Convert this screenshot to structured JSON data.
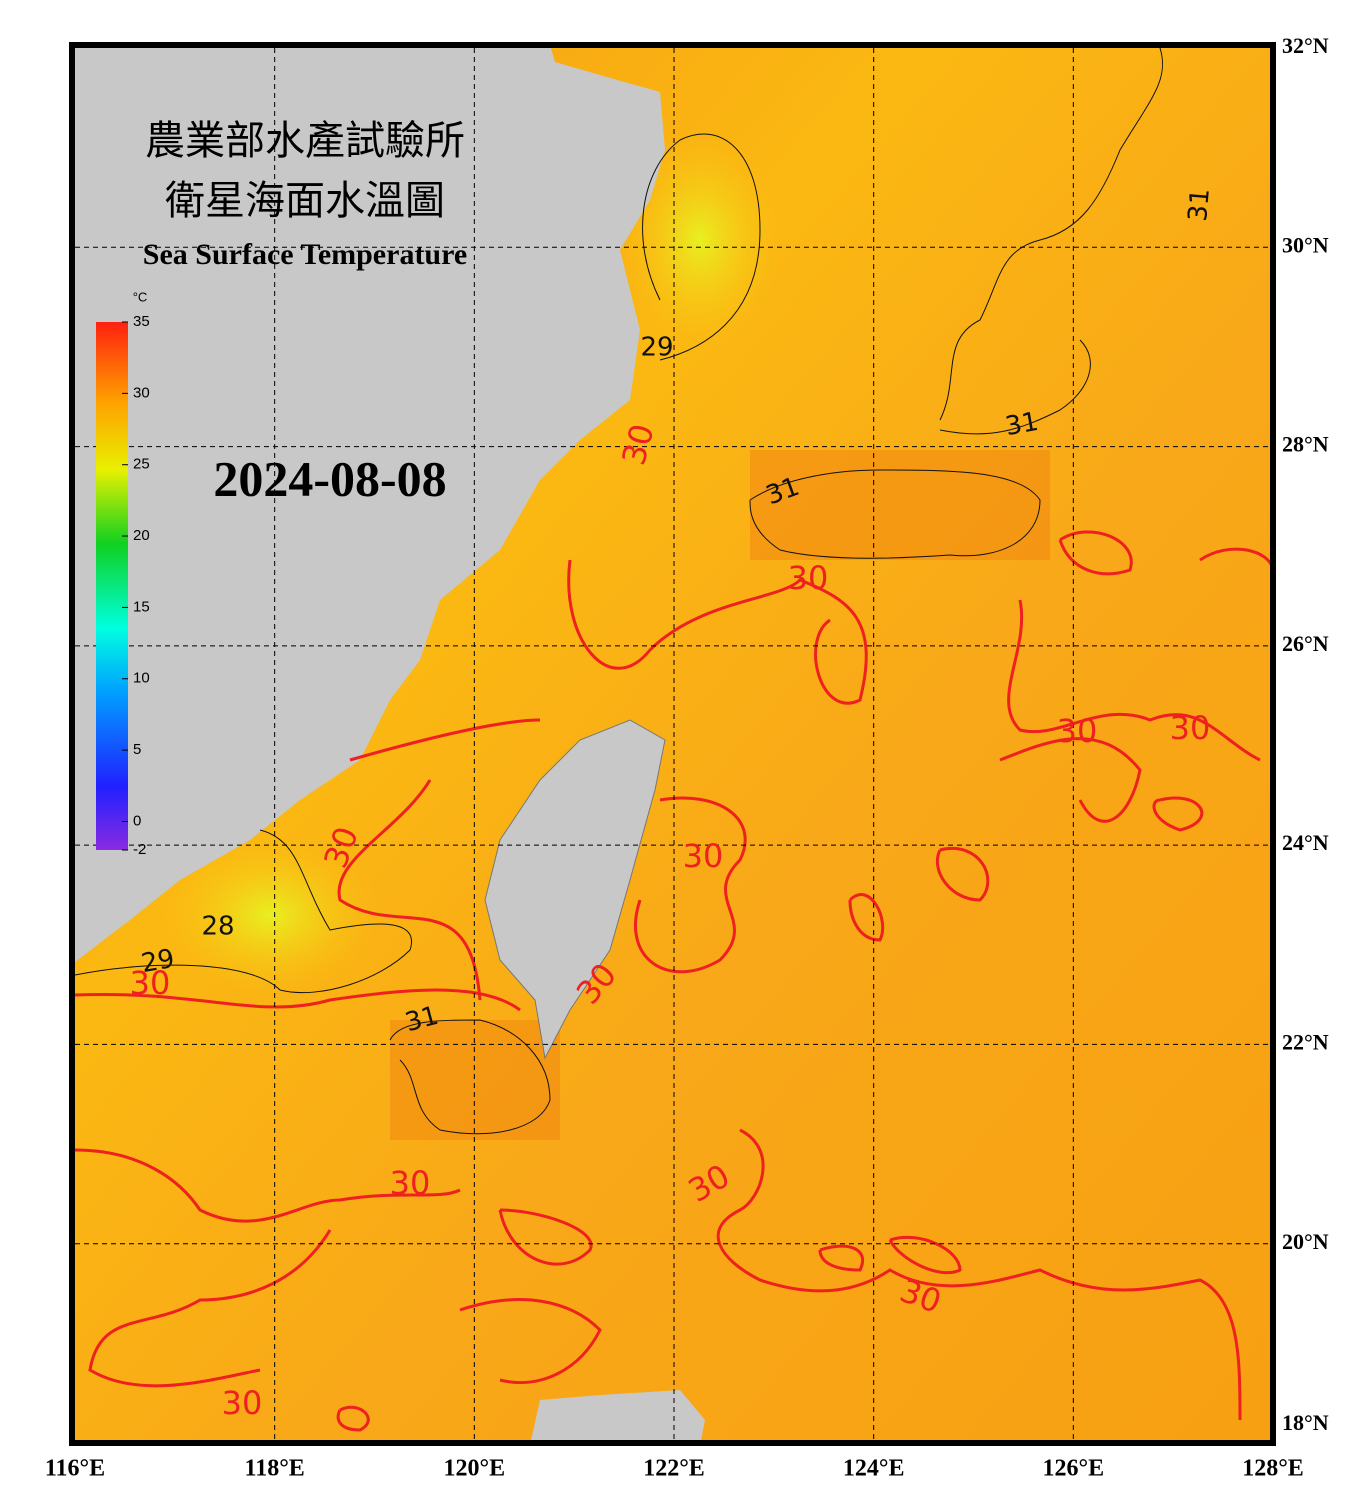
{
  "title_zh": [
    "農業部水產試驗所",
    "衛星海面水溫圖"
  ],
  "title_en": "Sea Surface Temperature",
  "date": "2024-08-08",
  "colorbar": {
    "unit": "°C",
    "lim": [
      -2,
      35
    ],
    "ticks": [
      35,
      30,
      25,
      20,
      15,
      10,
      5,
      0,
      -2
    ]
  },
  "lon_ticks": [
    {
      "value": 116,
      "label": "116°E"
    },
    {
      "value": 118,
      "label": "118°E"
    },
    {
      "value": 120,
      "label": "120°E"
    },
    {
      "value": 122,
      "label": "122°E"
    },
    {
      "value": 124,
      "label": "124°E"
    },
    {
      "value": 126,
      "label": "126°E"
    },
    {
      "value": 128,
      "label": "128°E"
    }
  ],
  "lat_ticks": [
    {
      "value": 18,
      "label": "18°N"
    },
    {
      "value": 20,
      "label": "20°N"
    },
    {
      "value": 22,
      "label": "22°N"
    },
    {
      "value": 24,
      "label": "24°N"
    },
    {
      "value": 26,
      "label": "26°N"
    },
    {
      "value": 28,
      "label": "28°N"
    },
    {
      "value": 30,
      "label": "30°N"
    },
    {
      "value": 32,
      "label": "32°N"
    }
  ],
  "contour_labels": [
    "30",
    "30",
    "30",
    "30",
    "30",
    "30",
    "30",
    "30",
    "30",
    "30",
    "30",
    "30",
    "31",
    "31",
    "31",
    "31",
    "29",
    "28",
    "29"
  ]
}
